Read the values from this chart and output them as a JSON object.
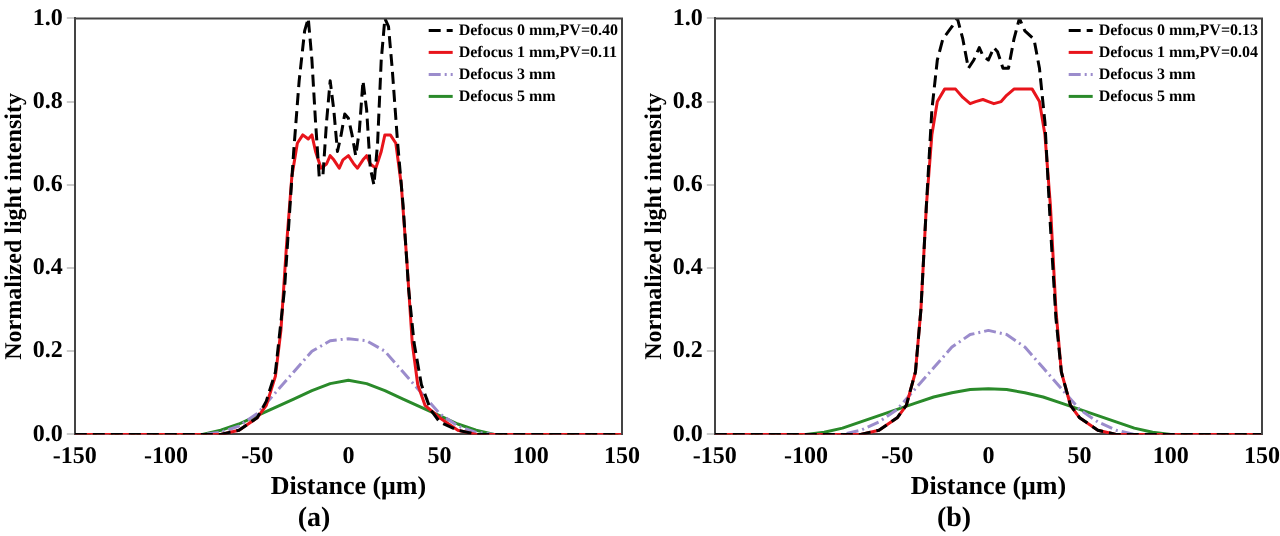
{
  "chart_data": [
    {
      "type": "line",
      "title": "(a)",
      "xlabel": "Distance (μm)",
      "ylabel": "Normalized light intensity",
      "xlim": [
        -150,
        150
      ],
      "xticks": [
        -150,
        -100,
        -50,
        0,
        50,
        100,
        150
      ],
      "ylim": [
        0,
        1
      ],
      "yticks": [
        {
          "value": 0,
          "label": "0.0"
        },
        {
          "value": 0.2,
          "label": "0.2"
        },
        {
          "value": 0.4,
          "label": "0.4"
        },
        {
          "value": 0.6,
          "label": "0.6"
        },
        {
          "value": 0.8,
          "label": "0.8"
        },
        {
          "value": 1,
          "label": "1.0"
        }
      ],
      "grid": false,
      "legend": "top right",
      "marker": "none",
      "series": [
        {
          "name": "Defocus 0 mm,PV=0.40",
          "color": "#000000",
          "line_style": "dashed",
          "x": [
            -150,
            -70,
            -60,
            -50,
            -45,
            -40,
            -35,
            -32,
            -30,
            -27,
            -24,
            -22,
            -20,
            -18,
            -16,
            -14,
            -12,
            -10,
            -8,
            -6,
            -4,
            -2,
            0,
            2,
            4,
            6,
            8,
            10,
            12,
            14,
            16,
            18,
            20,
            22,
            24,
            27,
            30,
            33,
            36,
            40,
            45,
            50,
            60,
            70,
            150
          ],
          "values": [
            0,
            0,
            0.01,
            0.04,
            0.08,
            0.15,
            0.35,
            0.55,
            0.68,
            0.85,
            0.97,
            1.0,
            0.9,
            0.75,
            0.62,
            0.62,
            0.75,
            0.85,
            0.78,
            0.68,
            0.72,
            0.77,
            0.76,
            0.72,
            0.67,
            0.73,
            0.85,
            0.78,
            0.64,
            0.6,
            0.7,
            0.9,
            1.0,
            0.98,
            0.88,
            0.7,
            0.55,
            0.35,
            0.22,
            0.12,
            0.06,
            0.03,
            0.01,
            0,
            0
          ]
        },
        {
          "name": "Defocus 1 mm,PV=0.11",
          "color": "#e8141b",
          "line_style": "solid",
          "x": [
            -150,
            -70,
            -60,
            -50,
            -45,
            -40,
            -37,
            -34,
            -31,
            -28,
            -25,
            -22,
            -20,
            -18,
            -15,
            -12,
            -10,
            -8,
            -5,
            -3,
            0,
            3,
            5,
            8,
            10,
            12,
            15,
            18,
            20,
            23,
            26,
            29,
            32,
            35,
            38,
            42,
            50,
            60,
            70,
            150
          ],
          "values": [
            0,
            0,
            0.01,
            0.04,
            0.07,
            0.14,
            0.25,
            0.45,
            0.62,
            0.7,
            0.72,
            0.71,
            0.72,
            0.68,
            0.64,
            0.65,
            0.67,
            0.66,
            0.64,
            0.66,
            0.67,
            0.65,
            0.64,
            0.66,
            0.67,
            0.65,
            0.64,
            0.68,
            0.72,
            0.72,
            0.7,
            0.6,
            0.42,
            0.22,
            0.12,
            0.07,
            0.04,
            0.01,
            0,
            0
          ]
        },
        {
          "name": "Defocus 3 mm",
          "color": "#9b8ccc",
          "line_style": "dashdot",
          "x": [
            -150,
            -80,
            -70,
            -60,
            -50,
            -40,
            -30,
            -20,
            -10,
            0,
            10,
            20,
            30,
            40,
            50,
            60,
            70,
            80,
            150
          ],
          "values": [
            0,
            0,
            0.005,
            0.02,
            0.05,
            0.1,
            0.15,
            0.2,
            0.225,
            0.23,
            0.225,
            0.2,
            0.15,
            0.1,
            0.05,
            0.02,
            0.005,
            0,
            0
          ]
        },
        {
          "name": "Defocus 5 mm",
          "color": "#2a8a2a",
          "line_style": "solid",
          "x": [
            -150,
            -80,
            -70,
            -60,
            -50,
            -40,
            -30,
            -20,
            -10,
            0,
            10,
            20,
            30,
            40,
            50,
            60,
            70,
            80,
            150
          ],
          "values": [
            0,
            0,
            0.01,
            0.025,
            0.045,
            0.065,
            0.085,
            0.105,
            0.122,
            0.13,
            0.122,
            0.105,
            0.085,
            0.065,
            0.045,
            0.025,
            0.01,
            0,
            0
          ]
        }
      ]
    },
    {
      "type": "line",
      "title": "(b)",
      "xlabel": "Distance (μm)",
      "ylabel": "Normalized light intensity",
      "xlim": [
        -150,
        150
      ],
      "xticks": [
        -150,
        -100,
        -50,
        0,
        50,
        100,
        150
      ],
      "ylim": [
        0,
        1
      ],
      "yticks": [
        {
          "value": 0,
          "label": "0.0"
        },
        {
          "value": 0.2,
          "label": "0.2"
        },
        {
          "value": 0.4,
          "label": "0.4"
        },
        {
          "value": 0.6,
          "label": "0.6"
        },
        {
          "value": 0.8,
          "label": "0.8"
        },
        {
          "value": 1,
          "label": "1.0"
        }
      ],
      "grid": false,
      "legend": "top right",
      "marker": "none",
      "series": [
        {
          "name": "Defocus 0 mm,PV=0.13",
          "color": "#000000",
          "line_style": "dashed",
          "x": [
            -150,
            -70,
            -60,
            -50,
            -45,
            -40,
            -37,
            -34,
            -31,
            -28,
            -25,
            -20,
            -17,
            -14,
            -11,
            -8,
            -5,
            -3,
            0,
            3,
            5,
            8,
            11,
            14,
            17,
            20,
            25,
            28,
            31,
            34,
            37,
            40,
            45,
            50,
            60,
            70,
            150
          ],
          "values": [
            0,
            0,
            0.01,
            0.04,
            0.07,
            0.15,
            0.3,
            0.55,
            0.78,
            0.9,
            0.95,
            0.98,
            1.0,
            0.95,
            0.88,
            0.9,
            0.93,
            0.91,
            0.9,
            0.93,
            0.92,
            0.88,
            0.88,
            0.95,
            1.0,
            0.97,
            0.95,
            0.88,
            0.75,
            0.5,
            0.28,
            0.15,
            0.07,
            0.04,
            0.01,
            0,
            0
          ]
        },
        {
          "name": "Defocus 1 mm,PV=0.04",
          "color": "#e8141b",
          "line_style": "solid",
          "x": [
            -150,
            -70,
            -60,
            -50,
            -45,
            -40,
            -37,
            -34,
            -31,
            -28,
            -24,
            -18,
            -14,
            -10,
            -7,
            -3,
            0,
            3,
            7,
            10,
            14,
            18,
            24,
            28,
            31,
            34,
            37,
            40,
            45,
            50,
            60,
            70,
            150
          ],
          "values": [
            0,
            0,
            0.01,
            0.04,
            0.07,
            0.15,
            0.3,
            0.55,
            0.72,
            0.8,
            0.83,
            0.83,
            0.81,
            0.795,
            0.8,
            0.805,
            0.8,
            0.795,
            0.8,
            0.815,
            0.83,
            0.83,
            0.83,
            0.8,
            0.72,
            0.55,
            0.3,
            0.15,
            0.07,
            0.04,
            0.01,
            0,
            0
          ]
        },
        {
          "name": "Defocus 3 mm",
          "color": "#9b8ccc",
          "line_style": "dashdot",
          "x": [
            -150,
            -80,
            -70,
            -60,
            -50,
            -40,
            -30,
            -20,
            -10,
            0,
            10,
            20,
            30,
            40,
            50,
            60,
            70,
            80,
            150
          ],
          "values": [
            0,
            0,
            0.01,
            0.03,
            0.06,
            0.11,
            0.16,
            0.21,
            0.24,
            0.25,
            0.24,
            0.21,
            0.16,
            0.11,
            0.06,
            0.03,
            0.01,
            0,
            0
          ]
        },
        {
          "name": "Defocus 5 mm",
          "color": "#2a8a2a",
          "line_style": "solid",
          "x": [
            -150,
            -100,
            -90,
            -80,
            -70,
            -60,
            -50,
            -40,
            -30,
            -20,
            -10,
            0,
            10,
            20,
            30,
            40,
            50,
            60,
            70,
            80,
            90,
            100,
            150
          ],
          "values": [
            0,
            0,
            0.005,
            0.015,
            0.03,
            0.045,
            0.06,
            0.075,
            0.09,
            0.1,
            0.108,
            0.11,
            0.108,
            0.1,
            0.09,
            0.075,
            0.06,
            0.045,
            0.03,
            0.015,
            0.005,
            0,
            0
          ]
        }
      ]
    }
  ]
}
